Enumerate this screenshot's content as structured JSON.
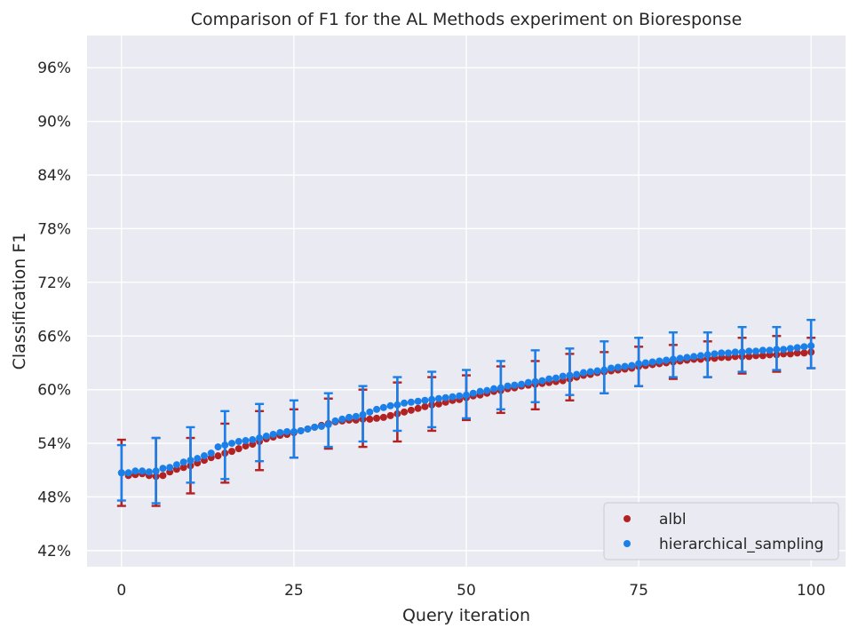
{
  "chart_data": {
    "type": "scatter",
    "title": "Comparison of F1 for the AL Methods experiment on Bioresponse",
    "xlabel": "Query iteration",
    "ylabel": "Classification F1",
    "xlim": [
      -5,
      105
    ],
    "ylim": [
      40.2,
      99.6
    ],
    "xticks": [
      0,
      25,
      50,
      75,
      100
    ],
    "xtick_labels": [
      "0",
      "25",
      "50",
      "75",
      "100"
    ],
    "yticks": [
      42,
      48,
      54,
      60,
      66,
      72,
      78,
      84,
      90,
      96
    ],
    "ytick_labels": [
      "42%",
      "48%",
      "54%",
      "60%",
      "66%",
      "72%",
      "78%",
      "84%",
      "90%",
      "96%"
    ],
    "grid": true,
    "legend_position": "lower-right",
    "series": [
      {
        "name": "albl",
        "color": "#b22222",
        "x": [
          0,
          1,
          2,
          3,
          4,
          5,
          6,
          7,
          8,
          9,
          10,
          11,
          12,
          13,
          14,
          15,
          16,
          17,
          18,
          19,
          20,
          21,
          22,
          23,
          24,
          25,
          26,
          27,
          28,
          29,
          30,
          31,
          32,
          33,
          34,
          35,
          36,
          37,
          38,
          39,
          40,
          41,
          42,
          43,
          44,
          45,
          46,
          47,
          48,
          49,
          50,
          51,
          52,
          53,
          54,
          55,
          56,
          57,
          58,
          59,
          60,
          61,
          62,
          63,
          64,
          65,
          66,
          67,
          68,
          69,
          70,
          71,
          72,
          73,
          74,
          75,
          76,
          77,
          78,
          79,
          80,
          81,
          82,
          83,
          84,
          85,
          86,
          87,
          88,
          89,
          90,
          91,
          92,
          93,
          94,
          95,
          96,
          97,
          98,
          99,
          100
        ],
        "values": [
          50.7,
          50.4,
          50.5,
          50.6,
          50.4,
          50.3,
          50.4,
          50.8,
          51.1,
          51.3,
          51.5,
          51.8,
          52.1,
          52.4,
          52.6,
          52.9,
          53.1,
          53.4,
          53.7,
          53.9,
          54.2,
          54.5,
          54.7,
          54.9,
          55.0,
          55.2,
          55.4,
          55.6,
          55.8,
          56.0,
          56.2,
          56.4,
          56.5,
          56.6,
          56.6,
          56.7,
          56.7,
          56.8,
          56.9,
          57.1,
          57.3,
          57.5,
          57.7,
          57.9,
          58.1,
          58.3,
          58.4,
          58.6,
          58.8,
          58.9,
          59.1,
          59.3,
          59.4,
          59.6,
          59.8,
          59.9,
          60.1,
          60.2,
          60.4,
          60.5,
          60.6,
          60.7,
          60.8,
          60.9,
          61.0,
          61.2,
          61.4,
          61.6,
          61.7,
          61.9,
          62.0,
          62.1,
          62.2,
          62.3,
          62.4,
          62.6,
          62.7,
          62.8,
          62.9,
          63.0,
          63.1,
          63.2,
          63.3,
          63.4,
          63.4,
          63.5,
          63.5,
          63.6,
          63.6,
          63.7,
          63.7,
          63.7,
          63.8,
          63.8,
          63.9,
          63.9,
          64.0,
          64.0,
          64.1,
          64.1,
          64.2
        ],
        "errorbars": [
          {
            "x": 0,
            "low": 47.0,
            "high": 54.4
          },
          {
            "x": 5,
            "low": 47.0,
            "high": 54.6
          },
          {
            "x": 10,
            "low": 48.4,
            "high": 54.6
          },
          {
            "x": 15,
            "low": 49.6,
            "high": 56.2
          },
          {
            "x": 20,
            "low": 51.0,
            "high": 57.6
          },
          {
            "x": 25,
            "low": 52.4,
            "high": 57.8
          },
          {
            "x": 30,
            "low": 53.4,
            "high": 59.0
          },
          {
            "x": 35,
            "low": 53.6,
            "high": 60.0
          },
          {
            "x": 40,
            "low": 54.2,
            "high": 60.8
          },
          {
            "x": 45,
            "low": 55.4,
            "high": 61.4
          },
          {
            "x": 50,
            "low": 56.6,
            "high": 61.6
          },
          {
            "x": 55,
            "low": 57.4,
            "high": 62.6
          },
          {
            "x": 60,
            "low": 57.8,
            "high": 63.2
          },
          {
            "x": 65,
            "low": 58.8,
            "high": 64.0
          },
          {
            "x": 70,
            "low": 59.6,
            "high": 64.2
          },
          {
            "x": 75,
            "low": 60.4,
            "high": 64.8
          },
          {
            "x": 80,
            "low": 61.2,
            "high": 65.0
          },
          {
            "x": 85,
            "low": 61.4,
            "high": 65.4
          },
          {
            "x": 90,
            "low": 61.8,
            "high": 65.8
          },
          {
            "x": 95,
            "low": 62.0,
            "high": 66.0
          },
          {
            "x": 100,
            "low": 62.4,
            "high": 65.8
          }
        ]
      },
      {
        "name": "hierarchical_sampling",
        "color": "#1a7fe8",
        "x": [
          0,
          1,
          2,
          3,
          4,
          5,
          6,
          7,
          8,
          9,
          10,
          11,
          12,
          13,
          14,
          15,
          16,
          17,
          18,
          19,
          20,
          21,
          22,
          23,
          24,
          25,
          26,
          27,
          28,
          29,
          30,
          31,
          32,
          33,
          34,
          35,
          36,
          37,
          38,
          39,
          40,
          41,
          42,
          43,
          44,
          45,
          46,
          47,
          48,
          49,
          50,
          51,
          52,
          53,
          54,
          55,
          56,
          57,
          58,
          59,
          60,
          61,
          62,
          63,
          64,
          65,
          66,
          67,
          68,
          69,
          70,
          71,
          72,
          73,
          74,
          75,
          76,
          77,
          78,
          79,
          80,
          81,
          82,
          83,
          84,
          85,
          86,
          87,
          88,
          89,
          90,
          91,
          92,
          93,
          94,
          95,
          96,
          97,
          98,
          99,
          100
        ],
        "values": [
          50.7,
          50.7,
          50.9,
          50.9,
          50.8,
          50.9,
          51.2,
          51.3,
          51.6,
          51.9,
          52.1,
          52.3,
          52.6,
          52.9,
          53.6,
          53.8,
          54.0,
          54.2,
          54.3,
          54.4,
          54.6,
          54.8,
          55.0,
          55.2,
          55.3,
          55.3,
          55.4,
          55.6,
          55.8,
          55.9,
          56.1,
          56.5,
          56.7,
          56.9,
          57.0,
          57.2,
          57.5,
          57.8,
          58.0,
          58.2,
          58.3,
          58.5,
          58.6,
          58.7,
          58.8,
          58.9,
          59.0,
          59.1,
          59.2,
          59.3,
          59.4,
          59.6,
          59.8,
          59.9,
          60.1,
          60.2,
          60.4,
          60.5,
          60.6,
          60.8,
          60.9,
          61.0,
          61.2,
          61.3,
          61.5,
          61.6,
          61.7,
          61.9,
          62.0,
          62.1,
          62.2,
          62.4,
          62.5,
          62.6,
          62.7,
          62.9,
          63.0,
          63.1,
          63.2,
          63.3,
          63.4,
          63.5,
          63.6,
          63.7,
          63.8,
          63.9,
          64.0,
          64.1,
          64.1,
          64.2,
          64.2,
          64.3,
          64.3,
          64.4,
          64.4,
          64.5,
          64.5,
          64.6,
          64.7,
          64.8,
          64.9
        ],
        "errorbars": [
          {
            "x": 0,
            "low": 47.6,
            "high": 53.8
          },
          {
            "x": 5,
            "low": 47.3,
            "high": 54.6
          },
          {
            "x": 10,
            "low": 49.6,
            "high": 55.8
          },
          {
            "x": 15,
            "low": 50.0,
            "high": 57.6
          },
          {
            "x": 20,
            "low": 52.0,
            "high": 58.4
          },
          {
            "x": 25,
            "low": 52.4,
            "high": 58.8
          },
          {
            "x": 30,
            "low": 53.6,
            "high": 59.6
          },
          {
            "x": 35,
            "low": 54.2,
            "high": 60.4
          },
          {
            "x": 40,
            "low": 55.4,
            "high": 61.4
          },
          {
            "x": 45,
            "low": 55.8,
            "high": 62.0
          },
          {
            "x": 50,
            "low": 56.8,
            "high": 62.2
          },
          {
            "x": 55,
            "low": 57.8,
            "high": 63.2
          },
          {
            "x": 60,
            "low": 58.6,
            "high": 64.4
          },
          {
            "x": 65,
            "low": 59.4,
            "high": 64.6
          },
          {
            "x": 70,
            "low": 59.6,
            "high": 65.4
          },
          {
            "x": 75,
            "low": 60.4,
            "high": 65.8
          },
          {
            "x": 80,
            "low": 61.4,
            "high": 66.4
          },
          {
            "x": 85,
            "low": 61.4,
            "high": 66.4
          },
          {
            "x": 90,
            "low": 62.0,
            "high": 67.0
          },
          {
            "x": 95,
            "low": 62.2,
            "high": 67.0
          },
          {
            "x": 100,
            "low": 62.4,
            "high": 67.8
          }
        ]
      }
    ]
  }
}
